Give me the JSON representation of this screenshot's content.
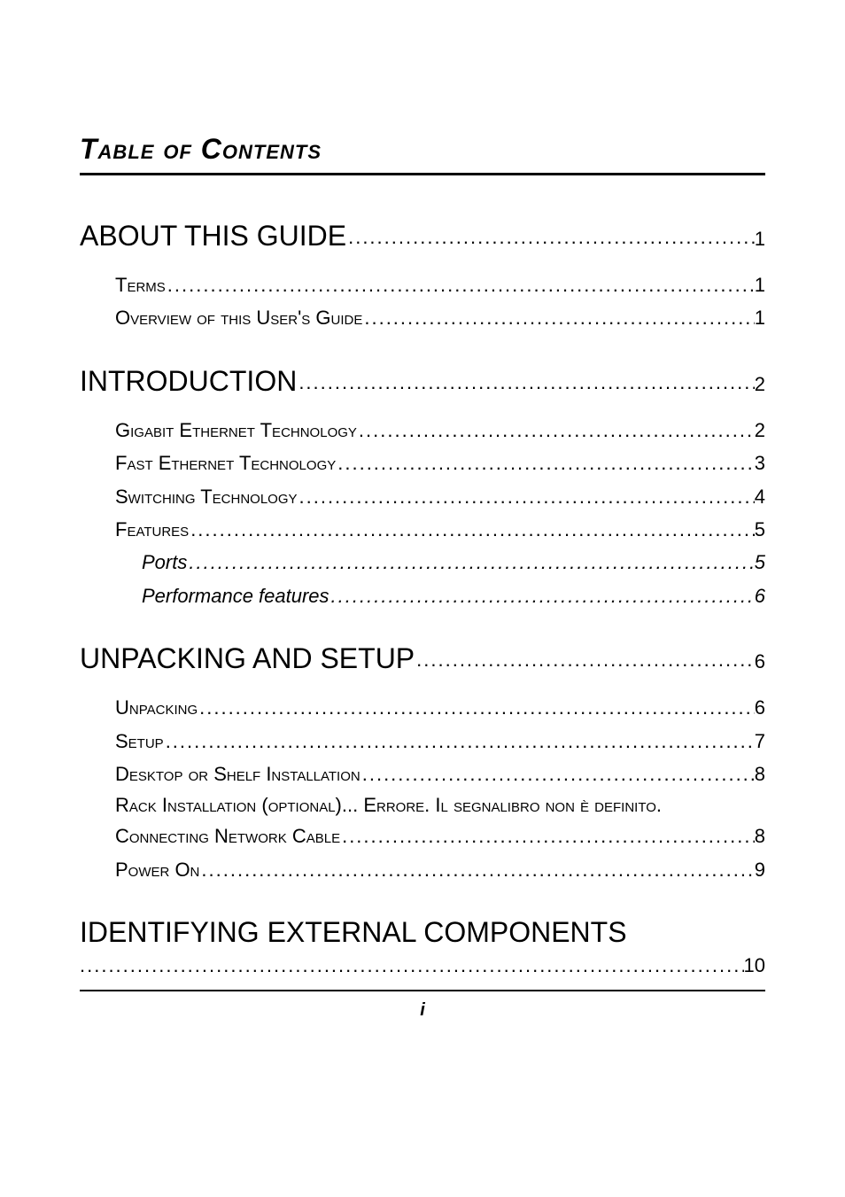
{
  "toc_title": "Table of Contents",
  "footer_page": "i",
  "sections": {
    "about": {
      "title": "ABOUT THIS GUIDE",
      "page": "1"
    },
    "about_items": [
      {
        "label": "Terms",
        "page": "1"
      },
      {
        "label": "Overview of this User's Guide",
        "page": "1"
      }
    ],
    "intro": {
      "title": "INTRODUCTION",
      "page": "2"
    },
    "intro_items": [
      {
        "label": "Gigabit Ethernet Technology",
        "page": "2"
      },
      {
        "label": "Fast Ethernet Technology",
        "page": "3"
      },
      {
        "label": "Switching Technology",
        "page": "4"
      },
      {
        "label": "Features",
        "page": "5"
      }
    ],
    "intro_sub": [
      {
        "label": "Ports",
        "page": "5"
      },
      {
        "label": "Performance features",
        "page": "6"
      }
    ],
    "unpack": {
      "title": "UNPACKING AND SETUP",
      "page": "6"
    },
    "unpack_items": [
      {
        "label": "Unpacking",
        "page": "6"
      },
      {
        "label": "Setup",
        "page": "7"
      },
      {
        "label": "Desktop or Shelf Installation",
        "page": "8"
      }
    ],
    "rack_line": "Rack Installation (optional)... Errore. Il segnalibro non è definito.",
    "unpack_items2": [
      {
        "label": "Connecting Network Cable",
        "page": "8"
      },
      {
        "label": "Power On",
        "page": "9"
      }
    ],
    "identify": {
      "title": "IDENTIFYING EXTERNAL COMPONENTS",
      "page": "10"
    }
  }
}
